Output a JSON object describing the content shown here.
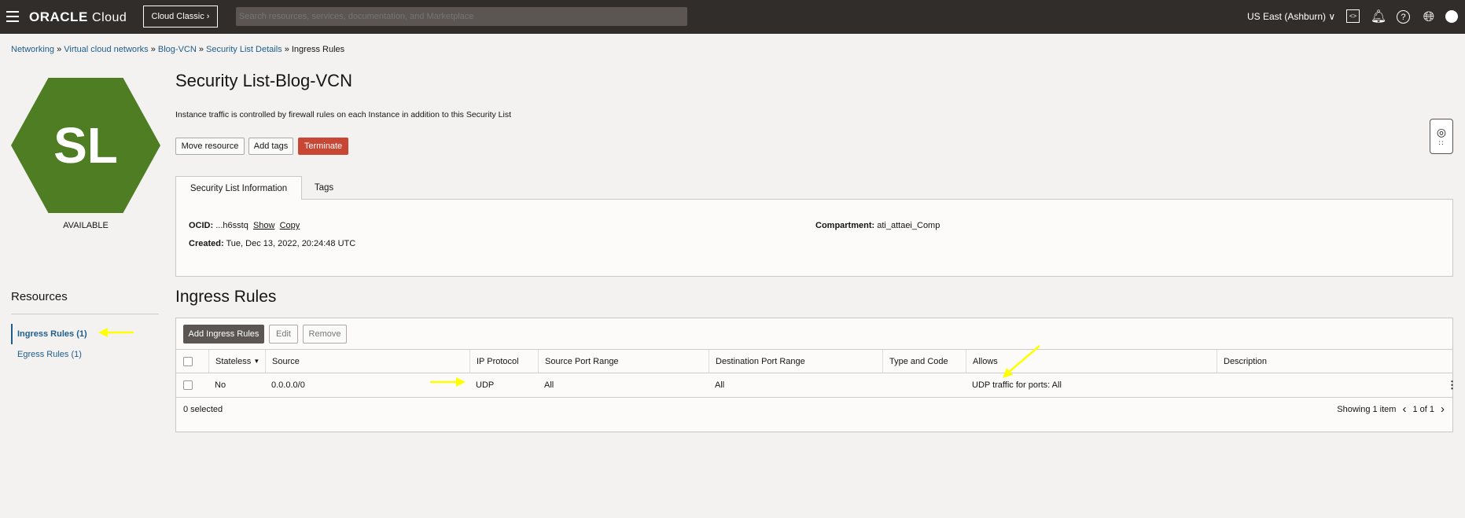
{
  "topbar": {
    "brand": "ORACLE",
    "brand_suffix": "Cloud",
    "classic_label": "Cloud Classic",
    "search_placeholder": "Search resources, services, documentation, and Marketplace",
    "region": "US East (Ashburn)"
  },
  "breadcrumb": [
    "Networking",
    "Virtual cloud networks",
    "Blog-VCN",
    "Security List Details",
    "Ingress Rules"
  ],
  "resource": {
    "badge": "SL",
    "badge_color": "#4f7d23",
    "status": "AVAILABLE"
  },
  "sidebar": {
    "title": "Resources",
    "items": [
      {
        "label": "Ingress Rules (1)",
        "active": true
      },
      {
        "label": "Egress Rules (1)",
        "active": false
      }
    ]
  },
  "header": {
    "title": "Security List-Blog-VCN",
    "description": "Instance traffic is controlled by firewall rules on each Instance in addition to this Security List",
    "buttons": {
      "move": "Move resource",
      "tags": "Add tags",
      "terminate": "Terminate"
    }
  },
  "tabs": [
    "Security List Information",
    "Tags"
  ],
  "info": {
    "ocid_label": "OCID:",
    "ocid_value": "...h6sstq",
    "show": "Show",
    "copy": "Copy",
    "created_label": "Created:",
    "created_value": "Tue, Dec 13, 2022, 20:24:48 UTC",
    "compartment_label": "Compartment:",
    "compartment_value": "ati_attaei_Comp"
  },
  "ingress": {
    "title": "Ingress Rules",
    "add": "Add Ingress Rules",
    "edit": "Edit",
    "remove": "Remove",
    "columns": [
      "Stateless",
      "Source",
      "IP Protocol",
      "Source Port Range",
      "Destination Port Range",
      "Type and Code",
      "Allows",
      "Description"
    ],
    "rows": [
      [
        "No",
        "0.0.0.0/0",
        "UDP",
        "All",
        "All",
        "",
        "UDP traffic for ports: All",
        ""
      ]
    ],
    "selected": "0 selected",
    "showing": "Showing 1 item",
    "page": "1 of 1"
  },
  "colors": {
    "terminate": "#c74634",
    "primary_button": "#5b5652",
    "annotation_arrow": "#ffff00"
  }
}
